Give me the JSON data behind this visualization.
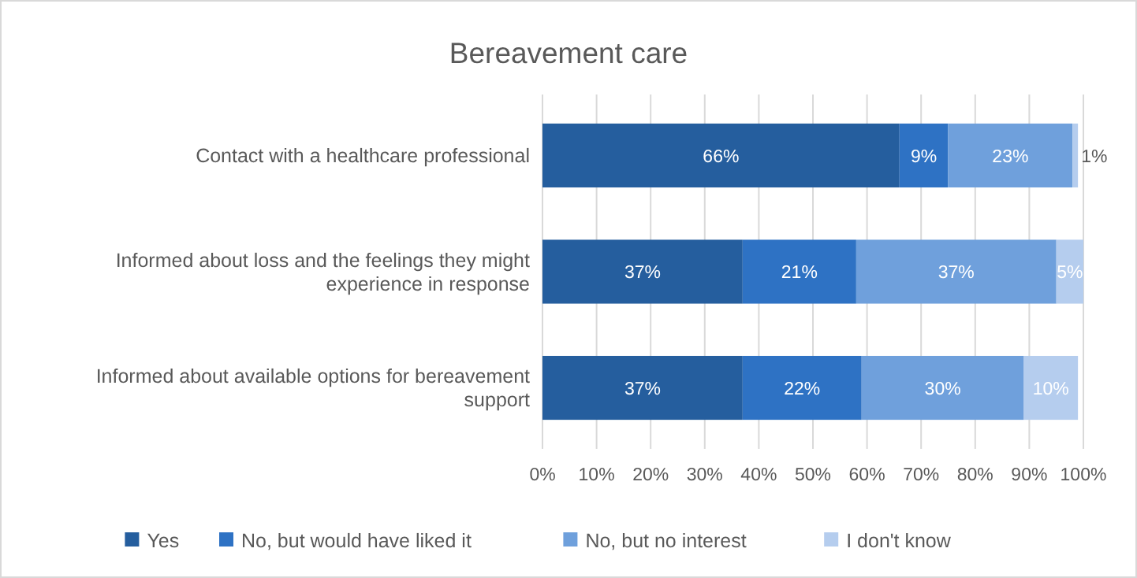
{
  "chart_data": {
    "type": "bar",
    "orientation": "horizontal",
    "stacked": true,
    "title": "Bereavement care",
    "categories": [
      "Contact with a healthcare professional",
      "Informed about loss and the feelings they might experience in response",
      "Informed about available options for bereavement support"
    ],
    "series": [
      {
        "name": "Yes",
        "color": "#255e9e",
        "values": [
          66,
          37,
          37
        ],
        "value_labels": [
          "66%",
          "37%",
          "37%"
        ]
      },
      {
        "name": "No, but would have liked it",
        "color": "#2e72c4",
        "values": [
          9,
          21,
          22
        ],
        "value_labels": [
          "9%",
          "21%",
          "22%"
        ]
      },
      {
        "name": "No, but no interest",
        "color": "#6fa0dc",
        "values": [
          23,
          37,
          30
        ],
        "value_labels": [
          "23%",
          "37%",
          "30%"
        ]
      },
      {
        "name": "I don't know",
        "color": "#b5cdee",
        "values": [
          1,
          5,
          10
        ],
        "value_labels": [
          "1%",
          "5%",
          "10%"
        ]
      }
    ],
    "xlim": [
      0,
      100
    ],
    "xticks": [
      {
        "value": 0,
        "label": "0%"
      },
      {
        "value": 10,
        "label": "10%"
      },
      {
        "value": 20,
        "label": "20%"
      },
      {
        "value": 30,
        "label": "30%"
      },
      {
        "value": 40,
        "label": "40%"
      },
      {
        "value": 50,
        "label": "50%"
      },
      {
        "value": 60,
        "label": "60%"
      },
      {
        "value": 70,
        "label": "70%"
      },
      {
        "value": 80,
        "label": "80%"
      },
      {
        "value": 90,
        "label": "90%"
      },
      {
        "value": 100,
        "label": "100%"
      }
    ],
    "grid": "x",
    "legend": "bottom"
  }
}
